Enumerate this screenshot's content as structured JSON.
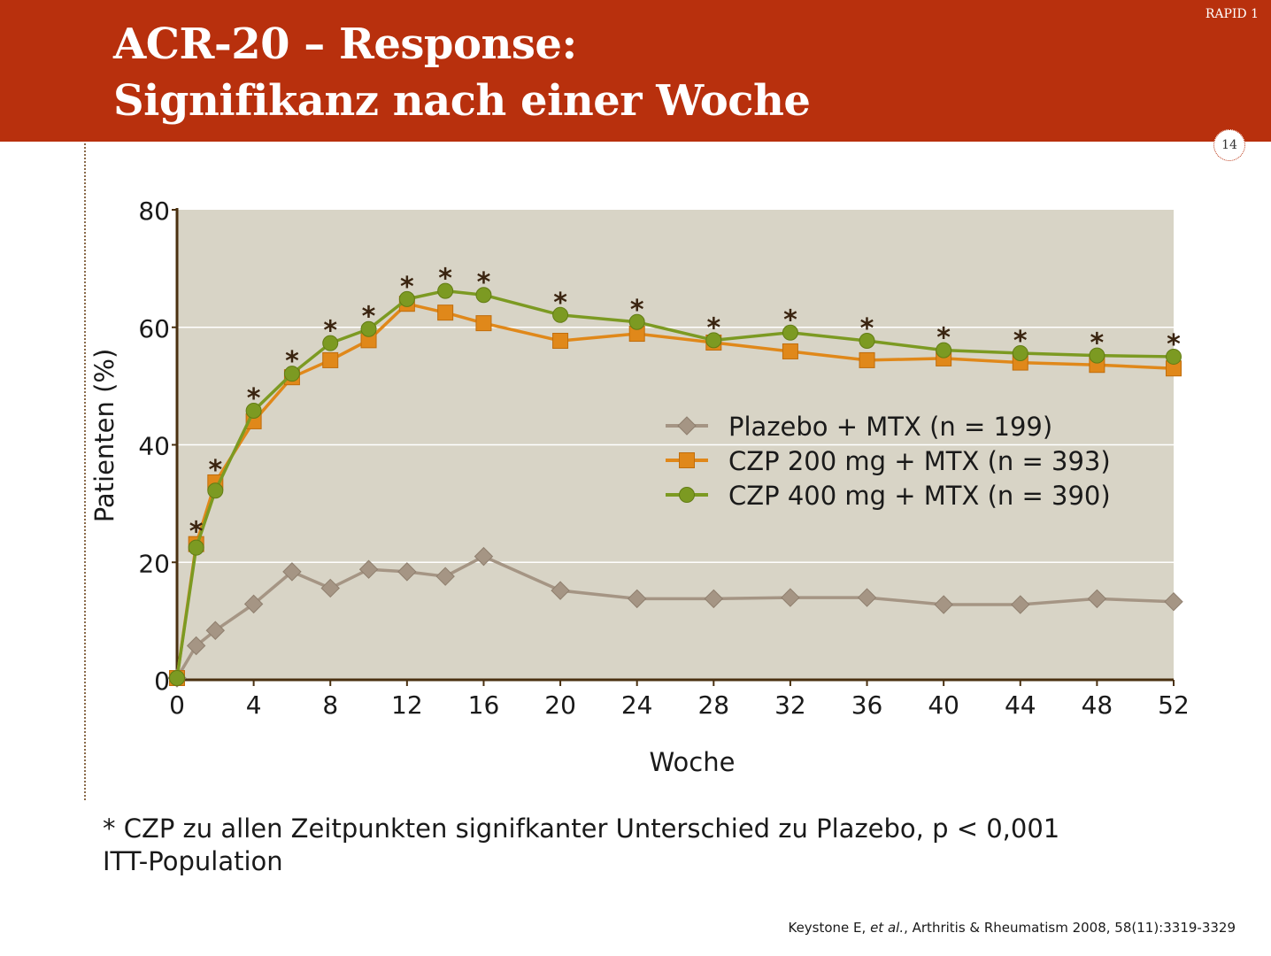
{
  "header": {
    "title_line1": "ACR-20 – Response:",
    "title_line2": "Signifikanz nach einer Woche",
    "study": "RAPID 1",
    "page_number": "14"
  },
  "footnote": {
    "line1": "* CZP zu allen Zeitpunkten signifkanter Unterschied zu Plazebo, p < 0,001",
    "line2": "ITT-Population"
  },
  "citation": {
    "prefix": "Keystone E, ",
    "etal": "et al.",
    "suffix": ", Arthritis & Rheumatism 2008, 58(11):3319-3329"
  },
  "colors": {
    "header_bg": "#b8300d",
    "plot_bg": "#d8d4c6",
    "axis": "#4a3010",
    "placebo": "#a59584",
    "czp200": "#e0881a",
    "czp400": "#7c9a22"
  },
  "chart_data": {
    "type": "line",
    "xlabel": "Woche",
    "ylabel": "Patienten (%)",
    "xlim": [
      0,
      52
    ],
    "ylim": [
      0,
      80
    ],
    "xticks": [
      0,
      4,
      8,
      12,
      16,
      20,
      24,
      28,
      32,
      36,
      40,
      44,
      48,
      52
    ],
    "yticks": [
      0,
      20,
      40,
      60,
      80
    ],
    "grid": "horizontal",
    "legend_position": "center-right",
    "series": [
      {
        "name": "Plazebo + MTX (n = 199)",
        "marker": "diamond",
        "color": "#a59584",
        "points": [
          [
            0,
            0.3
          ],
          [
            1,
            5.8
          ],
          [
            2,
            8.4
          ],
          [
            4,
            12.9
          ],
          [
            6,
            18.4
          ],
          [
            8,
            15.6
          ],
          [
            10,
            18.8
          ],
          [
            12,
            18.4
          ],
          [
            14,
            17.6
          ],
          [
            16,
            21.0
          ],
          [
            20,
            15.2
          ],
          [
            24,
            13.8
          ],
          [
            28,
            13.8
          ],
          [
            32,
            14.0
          ],
          [
            36,
            14.0
          ],
          [
            40,
            12.8
          ],
          [
            44,
            12.8
          ],
          [
            48,
            13.8
          ],
          [
            52,
            13.3
          ]
        ]
      },
      {
        "name": "CZP 200 mg + MTX (n = 393)",
        "marker": "square",
        "color": "#e0881a",
        "points": [
          [
            0,
            0.3
          ],
          [
            1,
            23.1
          ],
          [
            2,
            33.6
          ],
          [
            4,
            44.0
          ],
          [
            6,
            51.5
          ],
          [
            8,
            54.4
          ],
          [
            10,
            57.8
          ],
          [
            12,
            64.0
          ],
          [
            14,
            62.5
          ],
          [
            16,
            60.7
          ],
          [
            20,
            57.7
          ],
          [
            24,
            58.9
          ],
          [
            28,
            57.4
          ],
          [
            32,
            55.9
          ],
          [
            36,
            54.4
          ],
          [
            40,
            54.7
          ],
          [
            44,
            54.0
          ],
          [
            48,
            53.6
          ],
          [
            52,
            53.0
          ]
        ]
      },
      {
        "name": "CZP 400 mg + MTX (n = 390)",
        "marker": "circle",
        "color": "#7c9a22",
        "points": [
          [
            0,
            0.3
          ],
          [
            1,
            22.5
          ],
          [
            2,
            32.2
          ],
          [
            4,
            45.8
          ],
          [
            6,
            52.1
          ],
          [
            8,
            57.3
          ],
          [
            10,
            59.7
          ],
          [
            12,
            64.8
          ],
          [
            14,
            66.2
          ],
          [
            16,
            65.5
          ],
          [
            20,
            62.1
          ],
          [
            24,
            60.9
          ],
          [
            28,
            57.8
          ],
          [
            32,
            59.1
          ],
          [
            36,
            57.7
          ],
          [
            40,
            56.1
          ],
          [
            44,
            55.6
          ],
          [
            48,
            55.2
          ],
          [
            52,
            55.0
          ]
        ]
      }
    ],
    "annotations": {
      "symbol": "*",
      "weeks": [
        1,
        2,
        4,
        6,
        8,
        10,
        12,
        14,
        16,
        20,
        24,
        28,
        32,
        36,
        40,
        44,
        48,
        52
      ]
    }
  }
}
